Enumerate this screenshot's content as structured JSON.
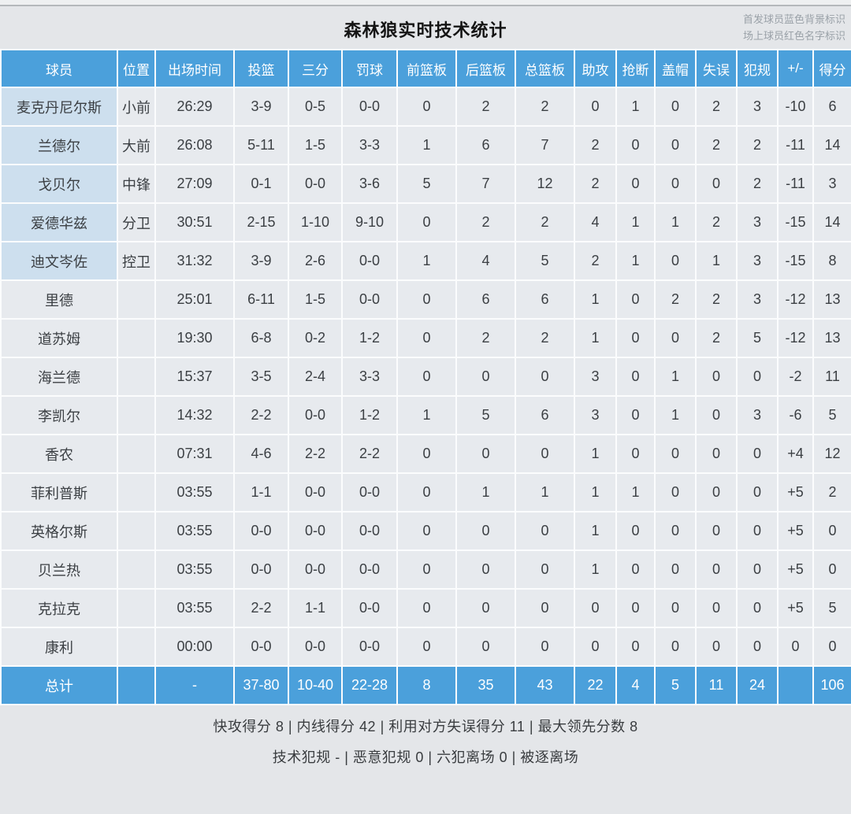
{
  "title": "森林狼实时技术统计",
  "legend": {
    "starters_note": "首发球员蓝色背景标识",
    "oncourt_note": "场上球员红色名字标识"
  },
  "colors": {
    "header_blue": "#4ba0db",
    "total_row_blue": "#4ba0db",
    "starter_cell_blue": "#cddfee",
    "row_gray": "#e7eaee",
    "page_bg": "#e4e6e9",
    "grid_line": "#fbfcfd"
  },
  "table": {
    "columns": [
      "球员",
      "位置",
      "出场时间",
      "投篮",
      "三分",
      "罚球",
      "前篮板",
      "后篮板",
      "总篮板",
      "助攻",
      "抢断",
      "盖帽",
      "失误",
      "犯规",
      "+/-",
      "得分"
    ],
    "rows": [
      {
        "name": "麦克丹尼尔斯",
        "position": "小前",
        "starter": true,
        "stats": [
          "26:29",
          "3-9",
          "0-5",
          "0-0",
          "0",
          "2",
          "2",
          "0",
          "1",
          "0",
          "2",
          "3",
          "-10",
          "6"
        ]
      },
      {
        "name": "兰德尔",
        "position": "大前",
        "starter": true,
        "stats": [
          "26:08",
          "5-11",
          "1-5",
          "3-3",
          "1",
          "6",
          "7",
          "2",
          "0",
          "0",
          "2",
          "2",
          "-11",
          "14"
        ]
      },
      {
        "name": "戈贝尔",
        "position": "中锋",
        "starter": true,
        "stats": [
          "27:09",
          "0-1",
          "0-0",
          "3-6",
          "5",
          "7",
          "12",
          "2",
          "0",
          "0",
          "0",
          "2",
          "-11",
          "3"
        ]
      },
      {
        "name": "爱德华兹",
        "position": "分卫",
        "starter": true,
        "stats": [
          "30:51",
          "2-15",
          "1-10",
          "9-10",
          "0",
          "2",
          "2",
          "4",
          "1",
          "1",
          "2",
          "3",
          "-15",
          "14"
        ]
      },
      {
        "name": "迪文岑佐",
        "position": "控卫",
        "starter": true,
        "stats": [
          "31:32",
          "3-9",
          "2-6",
          "0-0",
          "1",
          "4",
          "5",
          "2",
          "1",
          "0",
          "1",
          "3",
          "-15",
          "8"
        ]
      },
      {
        "name": "里德",
        "position": "",
        "starter": false,
        "stats": [
          "25:01",
          "6-11",
          "1-5",
          "0-0",
          "0",
          "6",
          "6",
          "1",
          "0",
          "2",
          "2",
          "3",
          "-12",
          "13"
        ]
      },
      {
        "name": "道苏姆",
        "position": "",
        "starter": false,
        "stats": [
          "19:30",
          "6-8",
          "0-2",
          "1-2",
          "0",
          "2",
          "2",
          "1",
          "0",
          "0",
          "2",
          "5",
          "-12",
          "13"
        ]
      },
      {
        "name": "海兰德",
        "position": "",
        "starter": false,
        "stats": [
          "15:37",
          "3-5",
          "2-4",
          "3-3",
          "0",
          "0",
          "0",
          "3",
          "0",
          "1",
          "0",
          "0",
          "-2",
          "11"
        ]
      },
      {
        "name": "李凯尔",
        "position": "",
        "starter": false,
        "stats": [
          "14:32",
          "2-2",
          "0-0",
          "1-2",
          "1",
          "5",
          "6",
          "3",
          "0",
          "1",
          "0",
          "3",
          "-6",
          "5"
        ]
      },
      {
        "name": "香农",
        "position": "",
        "starter": false,
        "stats": [
          "07:31",
          "4-6",
          "2-2",
          "2-2",
          "0",
          "0",
          "0",
          "1",
          "0",
          "0",
          "0",
          "0",
          "+4",
          "12"
        ]
      },
      {
        "name": "菲利普斯",
        "position": "",
        "starter": false,
        "stats": [
          "03:55",
          "1-1",
          "0-0",
          "0-0",
          "0",
          "1",
          "1",
          "1",
          "1",
          "0",
          "0",
          "0",
          "+5",
          "2"
        ]
      },
      {
        "name": "英格尔斯",
        "position": "",
        "starter": false,
        "stats": [
          "03:55",
          "0-0",
          "0-0",
          "0-0",
          "0",
          "0",
          "0",
          "1",
          "0",
          "0",
          "0",
          "0",
          "+5",
          "0"
        ]
      },
      {
        "name": "贝兰热",
        "position": "",
        "starter": false,
        "stats": [
          "03:55",
          "0-0",
          "0-0",
          "0-0",
          "0",
          "0",
          "0",
          "1",
          "0",
          "0",
          "0",
          "0",
          "+5",
          "0"
        ]
      },
      {
        "name": "克拉克",
        "position": "",
        "starter": false,
        "stats": [
          "03:55",
          "2-2",
          "1-1",
          "0-0",
          "0",
          "0",
          "0",
          "0",
          "0",
          "0",
          "0",
          "0",
          "+5",
          "5"
        ]
      },
      {
        "name": "康利",
        "position": "",
        "starter": false,
        "stats": [
          "00:00",
          "0-0",
          "0-0",
          "0-0",
          "0",
          "0",
          "0",
          "0",
          "0",
          "0",
          "0",
          "0",
          "0",
          "0"
        ]
      }
    ],
    "total_row": {
      "label": "总计",
      "cells": [
        "",
        "-",
        "37-80",
        "10-40",
        "22-28",
        "8",
        "35",
        "43",
        "22",
        "4",
        "5",
        "11",
        "24",
        "",
        "106"
      ]
    }
  },
  "footer": {
    "line1": "快攻得分 8 | 内线得分 42 | 利用对方失误得分 11 | 最大领先分数 8",
    "line2": "技术犯规 - | 恶意犯规 0 | 六犯离场 0 | 被逐离场"
  }
}
